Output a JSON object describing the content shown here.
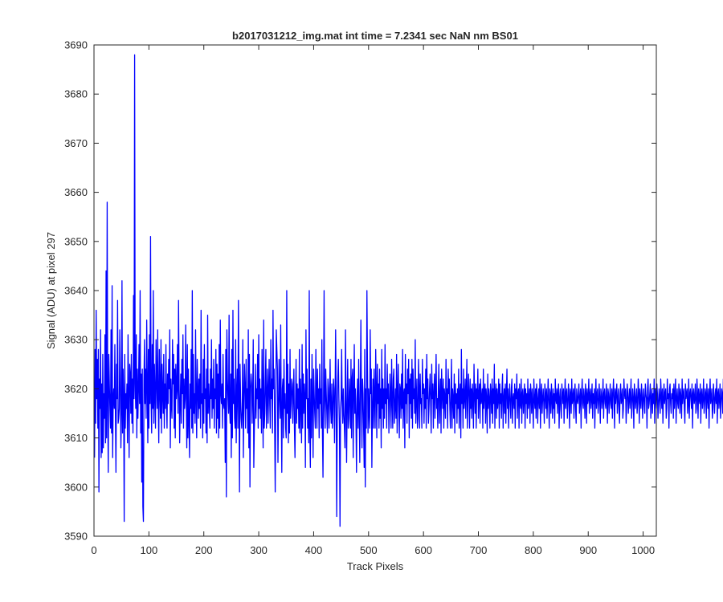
{
  "chart_data": {
    "type": "line",
    "title": "b2017031212_img.mat int time = 7.2341 sec  NaN nm BS01",
    "xlabel": "Track Pixels",
    "ylabel": "Signal (ADU) at pixel 297",
    "xlim": [
      0,
      1024
    ],
    "ylim": [
      3590,
      3690
    ],
    "xticks": [
      0,
      100,
      200,
      300,
      400,
      500,
      600,
      700,
      800,
      900,
      1000
    ],
    "yticks": [
      3590,
      3600,
      3610,
      3620,
      3630,
      3640,
      3650,
      3660,
      3670,
      3680,
      3690
    ],
    "grid": false,
    "series": [
      {
        "color": "#0000ff",
        "x_start": 1,
        "x_step": 1,
        "values": [
          3606,
          3628,
          3613,
          3636,
          3618,
          3626,
          3612,
          3628,
          3599,
          3622,
          3616,
          3632,
          3606,
          3621,
          3607,
          3627,
          3608,
          3619,
          3614,
          3631,
          3609,
          3644,
          3610,
          3658,
          3617,
          3603,
          3627,
          3621,
          3616,
          3612,
          3632,
          3611,
          3641,
          3606,
          3618,
          3620,
          3616,
          3629,
          3615,
          3603,
          3625,
          3618,
          3638,
          3613,
          3614,
          3616,
          3632,
          3622,
          3608,
          3615,
          3642,
          3611,
          3624,
          3618,
          3593,
          3627,
          3612,
          3619,
          3616,
          3621,
          3609,
          3631,
          3618,
          3606,
          3625,
          3623,
          3615,
          3627,
          3613,
          3622,
          3611,
          3639,
          3618,
          3688,
          3621,
          3616,
          3631,
          3610,
          3624,
          3614,
          3620,
          3629,
          3617,
          3640,
          3611,
          3623,
          3601,
          3624,
          3596,
          3593,
          3622,
          3630,
          3617,
          3624,
          3614,
          3634,
          3621,
          3609,
          3628,
          3612,
          3631,
          3617,
          3651,
          3618,
          3611,
          3629,
          3616,
          3640,
          3613,
          3625,
          3619,
          3612,
          3630,
          3622,
          3616,
          3632,
          3618,
          3609,
          3628,
          3620,
          3614,
          3630,
          3611,
          3625,
          3619,
          3615,
          3627,
          3612,
          3621,
          3616,
          3629,
          3618,
          3612,
          3623,
          3617,
          3626,
          3620,
          3632,
          3608,
          3622,
          3617,
          3614,
          3630,
          3621,
          3627,
          3612,
          3624,
          3610,
          3625,
          3618,
          3620,
          3629,
          3615,
          3638,
          3621,
          3609,
          3617,
          3623,
          3613,
          3626,
          3619,
          3631,
          3612,
          3622,
          3616,
          3618,
          3633,
          3619,
          3608,
          3629,
          3610,
          3624,
          3613,
          3606,
          3621,
          3616,
          3628,
          3612,
          3640,
          3611,
          3627,
          3615,
          3619,
          3613,
          3632,
          3618,
          3610,
          3626,
          3620,
          3614,
          3622,
          3616,
          3623,
          3612,
          3636,
          3617,
          3619,
          3610,
          3626,
          3613,
          3629,
          3618,
          3620,
          3611,
          3624,
          3609,
          3635,
          3615,
          3621,
          3617,
          3612,
          3624,
          3618,
          3630,
          3614,
          3622,
          3616,
          3626,
          3612,
          3620,
          3618,
          3628,
          3611,
          3625,
          3614,
          3623,
          3610,
          3629,
          3612,
          3634,
          3619,
          3617,
          3621,
          3612,
          3627,
          3617,
          3616,
          3618,
          3605,
          3628,
          3598,
          3632,
          3622,
          3618,
          3615,
          3635,
          3616,
          3613,
          3623,
          3606,
          3628,
          3610,
          3636,
          3617,
          3622,
          3614,
          3612,
          3630,
          3609,
          3619,
          3624,
          3612,
          3638,
          3620,
          3599,
          3625,
          3618,
          3614,
          3612,
          3616,
          3630,
          3606,
          3618,
          3625,
          3620,
          3612,
          3626,
          3616,
          3620,
          3611,
          3632,
          3608,
          3627,
          3600,
          3620,
          3623,
          3621,
          3613,
          3619,
          3630,
          3604,
          3612,
          3616,
          3625,
          3614,
          3620,
          3618,
          3627,
          3612,
          3631,
          3616,
          3622,
          3614,
          3620,
          3611,
          3628,
          3618,
          3608,
          3634,
          3612,
          3615,
          3621,
          3628,
          3612,
          3618,
          3624,
          3613,
          3619,
          3626,
          3617,
          3612,
          3630,
          3618,
          3622,
          3611,
          3636,
          3620,
          3624,
          3612,
          3599,
          3617,
          3632,
          3628,
          3624,
          3605,
          3616,
          3626,
          3618,
          3614,
          3633,
          3616,
          3603,
          3620,
          3622,
          3610,
          3626,
          3616,
          3619,
          3612,
          3610,
          3640,
          3615,
          3625,
          3609,
          3621,
          3611,
          3628,
          3614,
          3617,
          3622,
          3621,
          3613,
          3619,
          3624,
          3612,
          3606,
          3617,
          3626,
          3613,
          3621,
          3616,
          3620,
          3612,
          3628,
          3611,
          3622,
          3617,
          3609,
          3629,
          3612,
          3623,
          3615,
          3621,
          3618,
          3604,
          3632,
          3618,
          3624,
          3612,
          3618,
          3609,
          3640,
          3612,
          3604,
          3622,
          3610,
          3627,
          3618,
          3606,
          3624,
          3619,
          3615,
          3612,
          3628,
          3620,
          3612,
          3624,
          3616,
          3620,
          3610,
          3625,
          3617,
          3620,
          3612,
          3630,
          3611,
          3602,
          3618,
          3640,
          3617,
          3612,
          3624,
          3619,
          3615,
          3611,
          3622,
          3620,
          3612,
          3618,
          3626,
          3616,
          3613,
          3621,
          3612,
          3615,
          3622,
          3620,
          3609,
          3618,
          3632,
          3619,
          3594,
          3614,
          3622,
          3626,
          3618,
          3612,
          3592,
          3616,
          3618,
          3628,
          3617,
          3613,
          3620,
          3615,
          3612,
          3608,
          3632,
          3618,
          3605,
          3617,
          3626,
          3612,
          3614,
          3622,
          3618,
          3612,
          3626,
          3610,
          3622,
          3624,
          3606,
          3619,
          3629,
          3615,
          3620,
          3614,
          3603,
          3618,
          3622,
          3612,
          3626,
          3616,
          3605,
          3620,
          3634,
          3618,
          3608,
          3622,
          3619,
          3612,
          3604,
          3628,
          3600,
          3620,
          3612,
          3640,
          3625,
          3611,
          3620,
          3615,
          3612,
          3632,
          3619,
          3624,
          3604,
          3616,
          3622,
          3612,
          3624,
          3618,
          3612,
          3628,
          3620,
          3610,
          3625,
          3617,
          3621,
          3612,
          3624,
          3614,
          3620,
          3608,
          3628,
          3616,
          3622,
          3612,
          3620,
          3614,
          3629,
          3617,
          3620,
          3612,
          3625,
          3618,
          3621,
          3611,
          3616,
          3623,
          3619,
          3612,
          3626,
          3618,
          3612,
          3622,
          3624,
          3613,
          3616,
          3620,
          3614,
          3627,
          3611,
          3619,
          3625,
          3617,
          3610,
          3621,
          3620,
          3614,
          3623,
          3616,
          3628,
          3612,
          3619,
          3620,
          3608,
          3627,
          3617,
          3621,
          3613,
          3624,
          3619,
          3626,
          3610,
          3622,
          3617,
          3623,
          3614,
          3626,
          3612,
          3624,
          3618,
          3620,
          3615,
          3630,
          3613,
          3618,
          3622,
          3612,
          3614,
          3626,
          3620,
          3612,
          3623,
          3617,
          3618,
          3612,
          3626,
          3619,
          3621,
          3613,
          3620,
          3616,
          3624,
          3612,
          3627,
          3618,
          3622,
          3613,
          3616,
          3620,
          3623,
          3617,
          3611,
          3625,
          3618,
          3621,
          3612,
          3619,
          3623,
          3614,
          3620,
          3627,
          3616,
          3618,
          3612,
          3620,
          3625,
          3613,
          3618,
          3622,
          3611,
          3624,
          3619,
          3616,
          3622,
          3612,
          3620,
          3618,
          3614,
          3626,
          3617,
          3620,
          3612,
          3624,
          3619,
          3622,
          3616,
          3612,
          3619,
          3626,
          3612,
          3620,
          3618,
          3614,
          3623,
          3611,
          3621,
          3617,
          3619,
          3613,
          3620,
          3616,
          3624,
          3612,
          3619,
          3621,
          3610,
          3628,
          3617,
          3620,
          3612,
          3624,
          3616,
          3618,
          3622,
          3614,
          3620,
          3626,
          3612,
          3618,
          3623,
          3619,
          3612,
          3622,
          3616,
          3620,
          3614,
          3621,
          3618,
          3612,
          3625,
          3619,
          3615,
          3621,
          3612,
          3620,
          3618,
          3624,
          3614,
          3619,
          3621,
          3613,
          3622,
          3617,
          3618,
          3620,
          3612,
          3624,
          3616,
          3619,
          3621,
          3613,
          3620,
          3618,
          3611,
          3623,
          3616,
          3620,
          3618,
          3612,
          3621,
          3619,
          3615,
          3622,
          3613,
          3620,
          3617,
          3625,
          3612,
          3619,
          3621,
          3614,
          3620,
          3616,
          3618,
          3622,
          3612,
          3621,
          3617,
          3619,
          3614,
          3620,
          3623,
          3612,
          3618,
          3620,
          3615,
          3621,
          3613,
          3619,
          3624,
          3616,
          3620,
          3612,
          3618,
          3621,
          3617,
          3614,
          3620,
          3622,
          3613,
          3618,
          3619,
          3616,
          3621,
          3612,
          3620,
          3618,
          3623,
          3614,
          3619,
          3620,
          3612,
          3621,
          3617,
          3616,
          3622,
          3613,
          3619,
          3620,
          3615,
          3618,
          3621,
          3612,
          3620,
          3617,
          3619,
          3614,
          3622,
          3616,
          3618,
          3620,
          3613,
          3621,
          3619,
          3615,
          3620,
          3617,
          3612,
          3622,
          3618,
          3616,
          3620,
          3614,
          3621,
          3619,
          3613,
          3618,
          3620,
          3616,
          3622,
          3612,
          3619,
          3621,
          3615,
          3618,
          3620,
          3617,
          3613,
          3621,
          3619,
          3616,
          3620,
          3614,
          3618,
          3622,
          3617,
          3612,
          3620,
          3619,
          3615,
          3621,
          3618,
          3614,
          3620,
          3616,
          3619,
          3613,
          3622,
          3618,
          3617,
          3620,
          3615,
          3619,
          3621,
          3612,
          3618,
          3620,
          3616,
          3614,
          3621,
          3619,
          3617,
          3620,
          3613,
          3618,
          3622,
          3616,
          3619,
          3620,
          3614,
          3617,
          3621,
          3618,
          3612,
          3620,
          3619,
          3615,
          3622,
          3617,
          3618,
          3620,
          3614,
          3619,
          3621,
          3616,
          3613,
          3620,
          3618,
          3617,
          3619,
          3621,
          3615,
          3618,
          3620,
          3612,
          3619,
          3622,
          3617,
          3616,
          3620,
          3618,
          3614,
          3621,
          3619,
          3613,
          3620,
          3617,
          3618,
          3622,
          3615,
          3619,
          3620,
          3616,
          3618,
          3621,
          3614,
          3619,
          3617,
          3620,
          3612,
          3618,
          3622,
          3616,
          3619,
          3620,
          3615,
          3617,
          3621,
          3618,
          3613,
          3620,
          3619,
          3616,
          3618,
          3622,
          3614,
          3619,
          3620,
          3617,
          3616,
          3621,
          3618,
          3613,
          3620,
          3619,
          3615,
          3618,
          3621,
          3617,
          3616,
          3620,
          3614,
          3619,
          3622,
          3618,
          3612,
          3620,
          3617,
          3619,
          3621,
          3615,
          3618,
          3620,
          3616,
          3613,
          3619,
          3621,
          3617,
          3618,
          3620,
          3614,
          3616,
          3622,
          3619,
          3618,
          3620,
          3613,
          3617,
          3621,
          3619,
          3615,
          3618,
          3620,
          3616,
          3619,
          3622,
          3614,
          3617,
          3620,
          3618,
          3612,
          3621,
          3619,
          3616,
          3618,
          3620,
          3615,
          3617,
          3622,
          3619,
          3613,
          3620,
          3618,
          3616,
          3621,
          3619,
          3614,
          3618,
          3620,
          3617,
          3615,
          3621,
          3619,
          3618,
          3612,
          3620,
          3622,
          3616,
          3617,
          3619,
          3621,
          3614,
          3618,
          3620,
          3615,
          3619,
          3617,
          3622,
          3613,
          3620,
          3618,
          3616,
          3621,
          3619,
          3614,
          3617,
          3620,
          3618,
          3615,
          3622,
          3619,
          3616,
          3620,
          3613,
          3618,
          3621,
          3617,
          3619,
          3620,
          3614,
          3616,
          3622,
          3618,
          3619,
          3612,
          3620,
          3621,
          3617,
          3615,
          3619,
          3618,
          3620,
          3614,
          3621,
          3616,
          3619,
          3622,
          3613,
          3618,
          3620,
          3617,
          3616,
          3621,
          3619,
          3615,
          3620,
          3618,
          3614,
          3622,
          3617,
          3619,
          3620,
          3616,
          3613,
          3621,
          3618,
          3619,
          3620,
          3615,
          3617,
          3622,
          3614,
          3619,
          3620,
          3618,
          3616,
          3621,
          3612,
          3619,
          3620,
          3617,
          3618,
          3621,
          3615,
          3616,
          3622,
          3619,
          3614,
          3620,
          3618,
          3617,
          3621,
          3613,
          3619,
          3620,
          3616,
          3618,
          3622,
          3615,
          3617,
          3620,
          3619,
          3614,
          3621,
          3618,
          3616,
          3620,
          3612,
          3619,
          3622,
          3617,
          3618,
          3620,
          3614,
          3616,
          3621,
          3619,
          3615,
          3618,
          3620,
          3617,
          3622,
          3613,
          3619,
          3620,
          3616,
          3618,
          3621,
          3614,
          3617,
          3620,
          3619,
          3615,
          3622,
          3618,
          3616,
          3620,
          3613,
          3619,
          3621,
          3617,
          3618,
          3620,
          3614,
          3616,
          3622,
          3619,
          3615,
          3618,
          3620,
          3617,
          3621,
          3612
        ]
      }
    ]
  }
}
